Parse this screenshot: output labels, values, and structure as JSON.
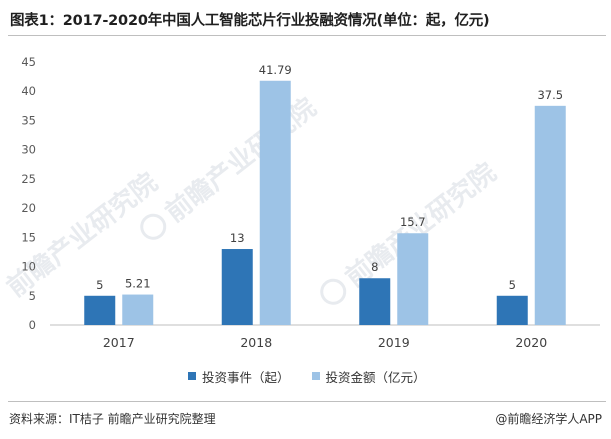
{
  "title": "图表1：2017-2020年中国人工智能芯片行业投融资情况(单位：起，亿元)",
  "source": "资料来源：IT桔子 前瞻产业研究院整理",
  "credit": "@前瞻经济学人APP",
  "watermark": "前瞻产业研究院",
  "colors": {
    "events": "#2e75b6",
    "amount": "#9dc3e6",
    "axis": "#bfbfbf",
    "grid": "#e6e6e6",
    "text": "#595959"
  },
  "chart_data": {
    "type": "bar",
    "categories": [
      "2017",
      "2018",
      "2019",
      "2020"
    ],
    "series": [
      {
        "name": "投资事件（起）",
        "values": [
          5,
          13,
          8,
          5
        ],
        "labels": [
          "5",
          "13",
          "8",
          "5"
        ]
      },
      {
        "name": "投资金额（亿元）",
        "values": [
          5.21,
          41.79,
          15.7,
          37.5
        ],
        "labels": [
          "5.21",
          "41.79",
          "15.7",
          "37.5"
        ]
      }
    ],
    "yticks": [
      "0",
      "5",
      "10",
      "15",
      "20",
      "25",
      "30",
      "35",
      "40",
      "45"
    ],
    "ylim": [
      0,
      45
    ],
    "legend_position": "bottom",
    "grid": false
  }
}
